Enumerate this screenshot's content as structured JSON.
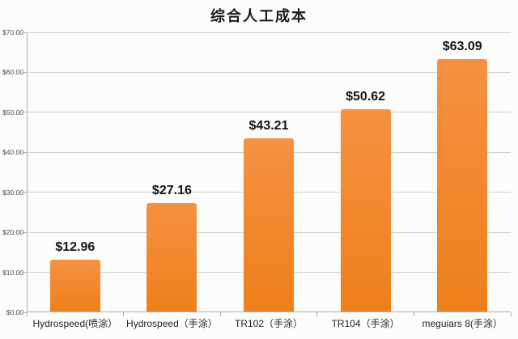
{
  "page": {
    "background": "#fcfcfa"
  },
  "chart_data": {
    "type": "bar",
    "title": "综合人工成本",
    "categories": [
      "Hydrospeed(喷涂）",
      "Hydrospeed（手涂）",
      "TR102（手涂）",
      "TR104（手涂）",
      "meguiars 8(手涂）"
    ],
    "values": [
      12.96,
      27.16,
      43.21,
      50.62,
      63.09
    ],
    "data_labels": [
      "$12.96",
      "$27.16",
      "$43.21",
      "$50.62",
      "$63.09"
    ],
    "xlabel": "",
    "ylabel": "",
    "ylim": [
      0,
      70
    ],
    "ytick_step": 10,
    "ytick_labels": [
      "$0.00",
      "$10.00",
      "$20.00",
      "$30.00",
      "$40.00",
      "$50.00",
      "$60.00",
      "$70.00"
    ],
    "grid": true,
    "legend": "none",
    "colors": {
      "bar_top": "#f69143",
      "bar_bottom": "#ee7f1b",
      "gridline": "#d0d0d0",
      "axis": "#aeaeae",
      "value_label": "#151515",
      "tick_label": "#4d4d4d",
      "category_label": "#262626"
    }
  }
}
